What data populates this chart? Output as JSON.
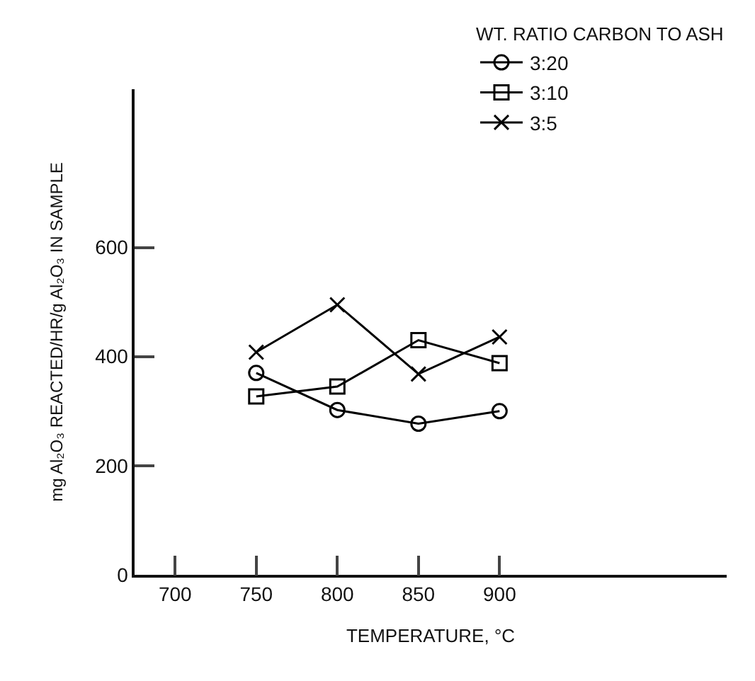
{
  "chart_data": {
    "type": "line",
    "xlabel": "TEMPERATURE, °C",
    "ylabel": "mg Al₂O₃ REACTED/HR/g Al₂O₃ IN SAMPLE",
    "legend_title": "WT. RATIO CARBON TO ASH",
    "x": [
      750,
      800,
      850,
      900
    ],
    "series": [
      {
        "name": "3:20",
        "color": "#000000",
        "marker": "circle",
        "values": [
          370,
          302,
          277,
          300
        ]
      },
      {
        "name": "3:10",
        "color": "#000000",
        "marker": "square",
        "values": [
          327,
          345,
          430,
          388
        ]
      },
      {
        "name": "3:5",
        "color": "#000000",
        "marker": "cross",
        "values": [
          408,
          495,
          368,
          436
        ]
      }
    ],
    "xlim": [
      675,
      1040
    ],
    "xticks": [
      700,
      750,
      800,
      850,
      900
    ],
    "ylim": [
      0,
      890
    ],
    "yticks": [
      0,
      200,
      400,
      600
    ],
    "grid": false,
    "legend": "top right",
    "line_style": "solid"
  }
}
